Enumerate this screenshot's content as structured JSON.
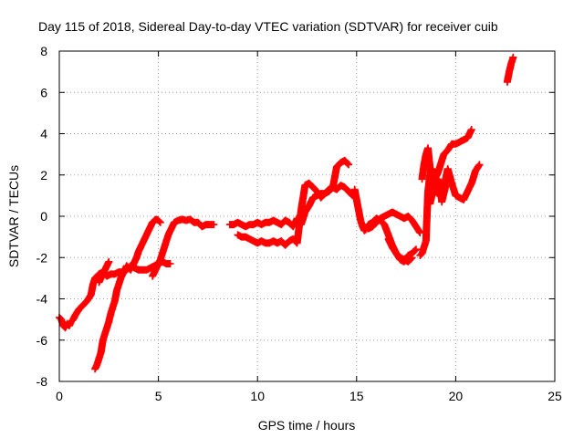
{
  "chart_data": {
    "type": "scatter",
    "title": "Day 115 of 2018, Sidereal Day-to-day VTEC variation (SDTVAR) for receiver cuib",
    "xlabel": "GPS time / hours",
    "ylabel": "SDTVAR / TECUs",
    "xlim": [
      0,
      25
    ],
    "ylim": [
      -8,
      8
    ],
    "xticks": [
      0,
      5,
      10,
      15,
      20,
      25
    ],
    "yticks": [
      -8,
      -6,
      -4,
      -2,
      0,
      2,
      4,
      6,
      8
    ],
    "grid": true,
    "marker": "+",
    "color": "#ff0000",
    "series": [
      {
        "segments": [
          {
            "x": [
              0.0,
              0.1,
              0.2,
              0.3,
              0.4,
              0.5,
              0.6,
              0.7,
              0.8,
              1.0,
              1.2,
              1.4,
              1.6,
              1.7,
              1.8,
              1.9,
              2.0,
              2.2,
              2.4,
              2.6,
              2.8,
              3.0,
              3.2,
              3.4,
              3.5,
              3.6,
              3.8,
              4.0,
              4.2,
              4.4,
              4.6,
              4.8,
              5.0,
              5.2,
              5.4,
              5.6
            ],
            "y": [
              -4.9,
              -5.0,
              -5.3,
              -5.4,
              -5.2,
              -5.3,
              -5.1,
              -5.0,
              -4.8,
              -4.5,
              -4.3,
              -4.1,
              -3.8,
              -3.3,
              -3.0,
              -2.9,
              -2.8,
              -2.7,
              -2.9,
              -2.8,
              -2.8,
              -2.7,
              -2.7,
              -2.6,
              -2.5,
              -2.4,
              -2.5,
              -2.6,
              -2.6,
              -2.6,
              -2.5,
              -2.4,
              -2.3,
              -2.2,
              -2.3,
              -2.3
            ]
          },
          {
            "x": [
              2.0,
              2.1,
              2.2,
              2.3,
              2.4,
              2.5
            ],
            "y": [
              -3.2,
              -3.0,
              -2.8,
              -2.6,
              -2.4,
              -2.2
            ]
          },
          {
            "x": [
              1.8,
              1.9,
              2.0,
              2.1,
              2.2,
              2.3,
              2.4,
              2.5,
              2.6,
              2.7,
              2.8,
              2.9,
              3.0,
              3.1,
              3.2,
              3.3,
              3.4,
              3.5,
              3.6,
              3.7,
              3.8,
              3.9,
              4.0,
              4.1,
              4.2,
              4.3,
              4.4,
              4.5,
              4.6,
              4.7,
              4.8,
              4.9,
              5.0,
              5.1
            ],
            "y": [
              -7.4,
              -7.2,
              -6.9,
              -6.6,
              -6.0,
              -5.7,
              -5.4,
              -5.1,
              -4.7,
              -4.4,
              -4.1,
              -3.6,
              -3.3,
              -3.0,
              -2.8,
              -2.6,
              -2.4,
              -2.5,
              -2.6,
              -2.4,
              -2.2,
              -2.0,
              -1.7,
              -1.5,
              -1.3,
              -1.1,
              -0.9,
              -0.7,
              -0.5,
              -0.3,
              -0.2,
              -0.15,
              -0.2,
              -0.3
            ]
          },
          {
            "x": [
              4.7,
              4.8,
              4.9,
              5.0,
              5.1,
              5.2,
              5.3,
              5.4,
              5.5,
              5.6,
              5.7,
              5.8,
              5.9,
              6.0,
              6.2,
              6.4,
              6.6,
              6.8,
              7.0,
              7.2,
              7.4,
              7.6,
              7.8
            ],
            "y": [
              -2.9,
              -2.7,
              -2.5,
              -2.3,
              -2.1,
              -1.8,
              -1.5,
              -1.2,
              -0.9,
              -0.7,
              -0.5,
              -0.3,
              -0.25,
              -0.2,
              -0.15,
              -0.2,
              -0.15,
              -0.3,
              -0.3,
              -0.5,
              -0.4,
              -0.4,
              -0.4
            ]
          },
          {
            "x": [
              8.6,
              8.8,
              9.0,
              9.2,
              9.4,
              9.6,
              9.8,
              10.0,
              10.2,
              10.4,
              10.6,
              10.8,
              11.0,
              11.2,
              11.4,
              11.6,
              11.8,
              12.0,
              12.2,
              12.4,
              12.6,
              12.8,
              13.0,
              13.2,
              13.4,
              13.6,
              13.8,
              14.0,
              14.2,
              14.4,
              14.6,
              14.8
            ],
            "y": [
              -0.4,
              -0.4,
              -0.3,
              -0.4,
              -0.5,
              -0.4,
              -0.4,
              -0.3,
              -0.4,
              -0.3,
              -0.3,
              -0.2,
              -0.3,
              -0.4,
              -0.2,
              -0.3,
              -0.5,
              -0.1,
              -0.4,
              0.2,
              0.5,
              0.9,
              1.0,
              1.1,
              1.1,
              1.2,
              1.4,
              1.3,
              1.5,
              1.4,
              1.2,
              1.0
            ]
          },
          {
            "x": [
              9.0,
              9.2,
              9.4,
              9.6,
              9.8,
              10.0,
              10.2,
              10.4,
              10.6,
              10.8,
              11.0,
              11.2,
              11.4,
              11.6,
              11.8,
              12.0,
              12.2,
              12.4,
              12.6,
              12.8,
              13.0,
              13.2,
              13.4,
              13.6,
              13.8,
              14.0,
              14.2,
              14.4,
              14.6
            ],
            "y": [
              -0.9,
              -1.0,
              -1.0,
              -1.1,
              -1.2,
              -1.3,
              -1.2,
              -1.3,
              -1.3,
              -1.2,
              -1.3,
              -1.2,
              -1.4,
              -1.2,
              -1.1,
              -1.3,
              0.3,
              1.5,
              1.6,
              1.4,
              1.2,
              0.9,
              1.1,
              1.3,
              1.4,
              2.4,
              2.6,
              2.7,
              2.5
            ]
          },
          {
            "x": [
              14.9,
              15.0,
              15.1,
              15.2,
              15.3,
              15.4,
              15.5,
              15.6,
              15.8,
              16.0,
              16.2,
              16.4,
              16.6,
              16.8,
              17.0,
              17.2,
              17.4,
              17.6,
              17.8,
              18.0
            ],
            "y": [
              1.3,
              0.8,
              0.3,
              -0.2,
              -0.5,
              -0.7,
              -0.6,
              -0.4,
              -0.3,
              -0.1,
              -0.2,
              -0.4,
              -0.9,
              -1.4,
              -1.8,
              -2.1,
              -2.2,
              -1.9,
              -1.8,
              -1.6
            ]
          },
          {
            "x": [
              15.6,
              15.8,
              16.0,
              16.2,
              16.4,
              16.6,
              16.8,
              17.0,
              17.2,
              17.4,
              17.6,
              17.8,
              18.0,
              18.2
            ],
            "y": [
              -0.6,
              -0.5,
              -0.3,
              -0.1,
              0.0,
              0.1,
              0.2,
              0.1,
              0.0,
              -0.1,
              0.0,
              -0.2,
              -0.5,
              -0.8
            ]
          },
          {
            "x": [
              16.6,
              16.8,
              17.0,
              17.2,
              17.4,
              17.6,
              17.8
            ],
            "y": [
              -1.1,
              -1.5,
              -1.8,
              -2.0,
              -2.1,
              -2.2,
              -2.0
            ]
          },
          {
            "x": [
              18.2,
              18.3,
              18.4,
              18.5,
              18.6,
              18.7,
              18.8,
              18.9,
              19.0,
              19.1,
              19.2,
              19.3,
              19.4,
              19.6,
              19.8,
              20.0,
              20.2,
              20.4,
              20.6,
              20.8
            ],
            "y": [
              -1.9,
              -1.8,
              -1.5,
              -1.2,
              1.2,
              2.0,
              2.3,
              1.7,
              1.9,
              2.1,
              2.4,
              2.7,
              3.0,
              3.2,
              3.5,
              3.5,
              3.6,
              3.7,
              3.8,
              4.2
            ]
          },
          {
            "x": [
              18.3,
              18.4,
              18.5,
              18.6,
              18.8,
              19.0,
              19.2,
              19.4,
              19.6,
              19.8,
              20.0,
              20.2,
              20.4,
              20.6,
              20.8,
              21.0,
              21.2
            ],
            "y": [
              1.8,
              2.5,
              3.0,
              3.3,
              1.5,
              1.2,
              1.0,
              1.4,
              2.3,
              1.6,
              1.0,
              0.9,
              0.8,
              1.2,
              1.6,
              2.2,
              2.5
            ]
          },
          {
            "x": [
              18.7,
              18.8,
              18.9,
              19.0,
              19.1,
              19.2,
              19.3,
              19.4,
              19.5
            ],
            "y": [
              0.6,
              1.0,
              1.5,
              1.2,
              1.8,
              1.6,
              0.7,
              1.1,
              1.5
            ]
          },
          {
            "x": [
              22.6,
              22.7,
              22.8,
              22.9
            ],
            "y": [
              6.5,
              7.0,
              7.4,
              7.7
            ]
          }
        ]
      }
    ]
  }
}
